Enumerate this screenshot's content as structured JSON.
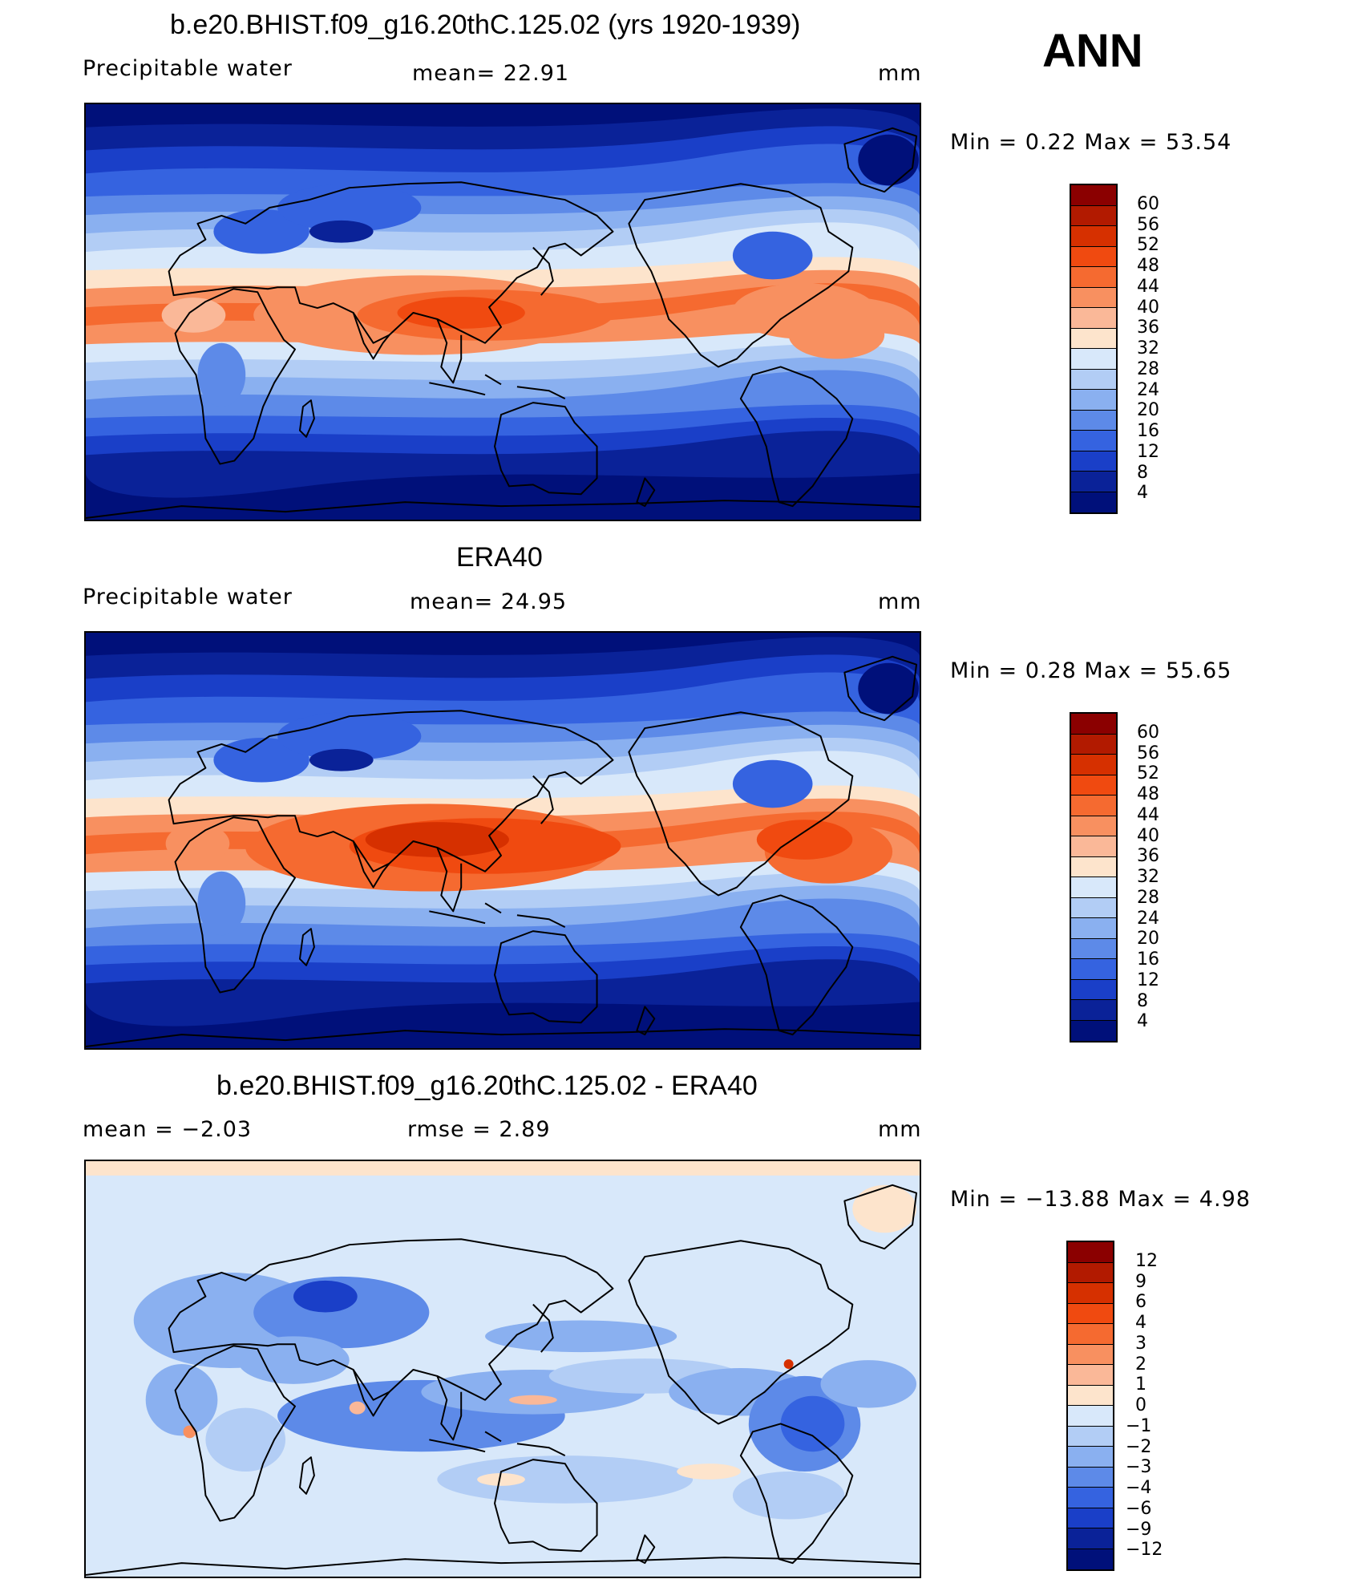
{
  "season": "ANN",
  "panels": [
    {
      "title": "b.e20.BHIST.f09_g16.20thC.125.02 (yrs 1920-1939)",
      "variable": "Precipitable  water",
      "stat": "mean=   22.91",
      "units": "mm",
      "minmax": "Min  =     0.22  Max  =     53.54",
      "kind": "field",
      "colorbar": {
        "labels": [
          "60",
          "56",
          "52",
          "48",
          "44",
          "40",
          "36",
          "32",
          "28",
          "24",
          "20",
          "16",
          "12",
          "8",
          "4"
        ],
        "colors": [
          "#8b0000",
          "#b21a00",
          "#d63000",
          "#f04a10",
          "#f56a30",
          "#f89060",
          "#fab898",
          "#fde4cc",
          "#d8e8fa",
          "#b2cdf5",
          "#8ab0f0",
          "#5d8ae8",
          "#3563e0",
          "#1a3fc8",
          "#0a2298",
          "#00107a"
        ]
      }
    },
    {
      "title": "ERA40",
      "variable": "Precipitable  water",
      "stat": "mean=   24.95",
      "units": "mm",
      "minmax": "Min  =     0.28  Max  =     55.65",
      "kind": "field",
      "colorbar": {
        "labels": [
          "60",
          "56",
          "52",
          "48",
          "44",
          "40",
          "36",
          "32",
          "28",
          "24",
          "20",
          "16",
          "12",
          "8",
          "4"
        ],
        "colors": [
          "#8b0000",
          "#b21a00",
          "#d63000",
          "#f04a10",
          "#f56a30",
          "#f89060",
          "#fab898",
          "#fde4cc",
          "#d8e8fa",
          "#b2cdf5",
          "#8ab0f0",
          "#5d8ae8",
          "#3563e0",
          "#1a3fc8",
          "#0a2298",
          "#00107a"
        ]
      }
    },
    {
      "title": "b.e20.BHIST.f09_g16.20thC.125.02 - ERA40",
      "variable": "mean  =    −2.03",
      "stat": "rmse  =     2.89",
      "units": "mm",
      "minmax": "Min  = −13.88  Max  =      4.98",
      "kind": "diff",
      "colorbar": {
        "labels": [
          "12",
          "9",
          "6",
          "4",
          "3",
          "2",
          "1",
          "0",
          "−1",
          "−2",
          "−3",
          "−4",
          "−6",
          "−9",
          "−12"
        ],
        "colors": [
          "#8b0000",
          "#b21a00",
          "#d63000",
          "#f04a10",
          "#f56a30",
          "#f89060",
          "#fab898",
          "#fde4cc",
          "#d8e8fa",
          "#b2cdf5",
          "#8ab0f0",
          "#5d8ae8",
          "#3563e0",
          "#1a3fc8",
          "#0a2298",
          "#00107a"
        ]
      }
    }
  ]
}
